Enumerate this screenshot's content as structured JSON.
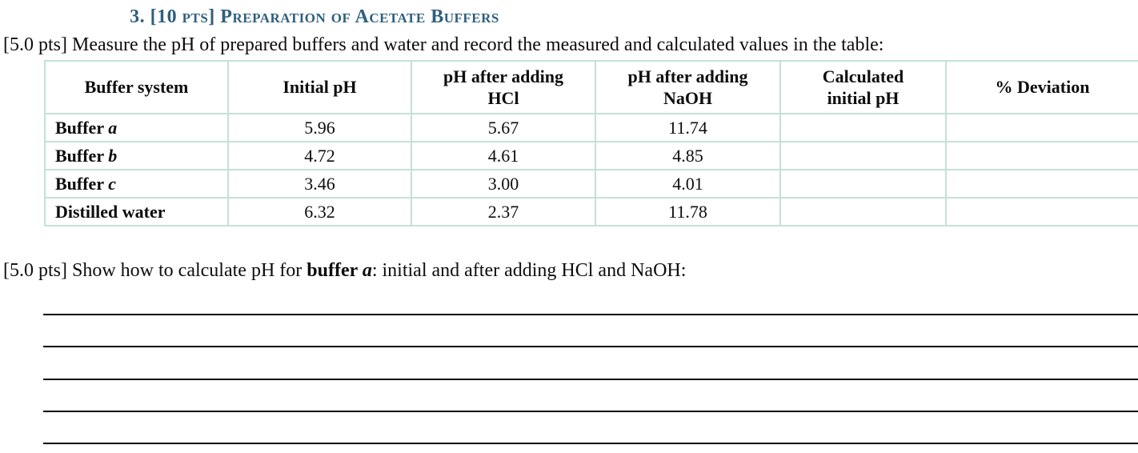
{
  "colors": {
    "heading": "#2E5F7E",
    "table_border": "#C5E0D8",
    "text": "#0D0D0D",
    "answer_line": "#000000"
  },
  "title": {
    "text": "3. [10 pts] Preparation of Acetate Buffers"
  },
  "intro": {
    "text": "[5.0 pts] Measure the pH of prepared buffers and water and record the measured and calculated values in the table:"
  },
  "table": {
    "headers": [
      {
        "line1": "Buffer system",
        "line2": ""
      },
      {
        "line1": "Initial pH",
        "line2": ""
      },
      {
        "line1": "pH after adding",
        "line2": "HCl"
      },
      {
        "line1": "pH after adding",
        "line2": "NaOH"
      },
      {
        "line1": "Calculated",
        "line2": "initial pH"
      },
      {
        "line1": "% Deviation",
        "line2": ""
      }
    ],
    "rows": [
      {
        "label": "Buffer ",
        "label_suffix": "a",
        "initial_ph": "5.96",
        "ph_after_hcl": "5.67",
        "ph_after_naoh": "11.74",
        "calculated_initial_ph": "",
        "percent_deviation": ""
      },
      {
        "label": "Buffer ",
        "label_suffix": "b",
        "initial_ph": "4.72",
        "ph_after_hcl": "4.61",
        "ph_after_naoh": "4.85",
        "calculated_initial_ph": "",
        "percent_deviation": ""
      },
      {
        "label": "Buffer ",
        "label_suffix": "c",
        "initial_ph": "3.46",
        "ph_after_hcl": "3.00",
        "ph_after_naoh": "4.01",
        "calculated_initial_ph": "",
        "percent_deviation": ""
      },
      {
        "label": "Distilled water",
        "label_suffix": "",
        "initial_ph": "6.32",
        "ph_after_hcl": "2.37",
        "ph_after_naoh": "11.78",
        "calculated_initial_ph": "",
        "percent_deviation": ""
      }
    ]
  },
  "question": {
    "prefix": "[5.0 pts] Show how to calculate pH for ",
    "bold": "buffer ",
    "bold_italic": "a",
    "suffix": ": initial and after adding HCl and NaOH:"
  },
  "answer_section": {
    "line_count": 5
  }
}
